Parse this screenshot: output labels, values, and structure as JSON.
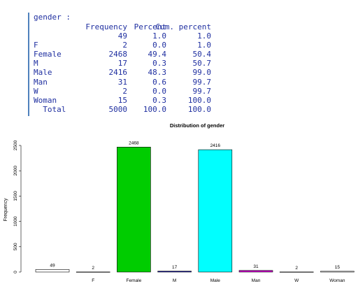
{
  "table": {
    "title": "gender :",
    "headers": [
      "Frequency",
      "Percent",
      "Cum. percent"
    ],
    "rows": [
      {
        "label": "",
        "freq": "49",
        "pct": "1.0",
        "cum": "1.0"
      },
      {
        "label": "F",
        "freq": "2",
        "pct": "0.0",
        "cum": "1.0"
      },
      {
        "label": "Female",
        "freq": "2468",
        "pct": "49.4",
        "cum": "50.4"
      },
      {
        "label": "M",
        "freq": "17",
        "pct": "0.3",
        "cum": "50.7"
      },
      {
        "label": "Male",
        "freq": "2416",
        "pct": "48.3",
        "cum": "99.0"
      },
      {
        "label": "Man",
        "freq": "31",
        "pct": "0.6",
        "cum": "99.7"
      },
      {
        "label": "W",
        "freq": "2",
        "pct": "0.0",
        "cum": "99.7"
      },
      {
        "label": "Woman",
        "freq": "15",
        "pct": "0.3",
        "cum": "100.0"
      }
    ],
    "total": {
      "label": "  Total",
      "freq": "5000",
      "pct": "100.0",
      "cum": "100.0"
    }
  },
  "chart_data": {
    "type": "bar",
    "title": "Distribution of gender",
    "xlabel": "",
    "ylabel": "Frequency",
    "categories": [
      "",
      "F",
      "Female",
      "M",
      "Male",
      "Man",
      "W",
      "Woman"
    ],
    "values": [
      49,
      2,
      2468,
      17,
      2416,
      31,
      2,
      15
    ],
    "data_labels": [
      "49",
      "2",
      "2468",
      "17",
      "2416",
      "31",
      "2",
      "15"
    ],
    "colors": [
      "#ffffff",
      "#ffffff",
      "#00cc00",
      "#0000aa",
      "#00ffff",
      "#cc00cc",
      "#ffffff",
      "#ffffff"
    ],
    "yticks": [
      0,
      500,
      1000,
      1500,
      2000,
      2500
    ],
    "ylim": [
      0,
      2500
    ],
    "grid": false
  }
}
